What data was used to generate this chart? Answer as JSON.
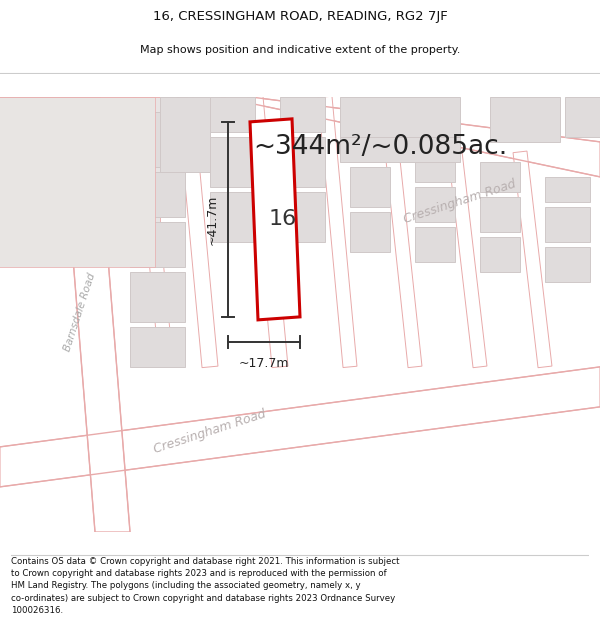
{
  "title_line1": "16, CRESSINGHAM ROAD, READING, RG2 7JF",
  "title_line2": "Map shows position and indicative extent of the property.",
  "area_text": "~344m²/~0.085ac.",
  "number_label": "16",
  "dim_height": "~41.7m",
  "dim_width": "~17.7m",
  "road_label_barns": "Barnsdale Road",
  "road_label_cress_lower": "Cressingham Road",
  "road_label_cress_upper": "Cressingham Road",
  "footer_lines": [
    "Contains OS data © Crown copyright and database right 2021. This information is subject",
    "to Crown copyright and database rights 2023 and is reproduced with the permission of",
    "HM Land Registry. The polygons (including the associated geometry, namely x, y",
    "co-ordinates) are subject to Crown copyright and database rights 2023 Ordnance Survey",
    "100026316."
  ],
  "map_bg": "#f2f0f0",
  "road_fill": "#ffffff",
  "road_line_color": "#e8aaaa",
  "building_fill": "#e0dcdc",
  "building_edge": "#d4c8c8",
  "plot_fill": "#ffffff",
  "plot_edge": "#cc0000",
  "dim_color": "#333333",
  "text_dark": "#222222",
  "text_road": "#b0a0a0",
  "title_color": "#111111",
  "footer_color": "#111111"
}
